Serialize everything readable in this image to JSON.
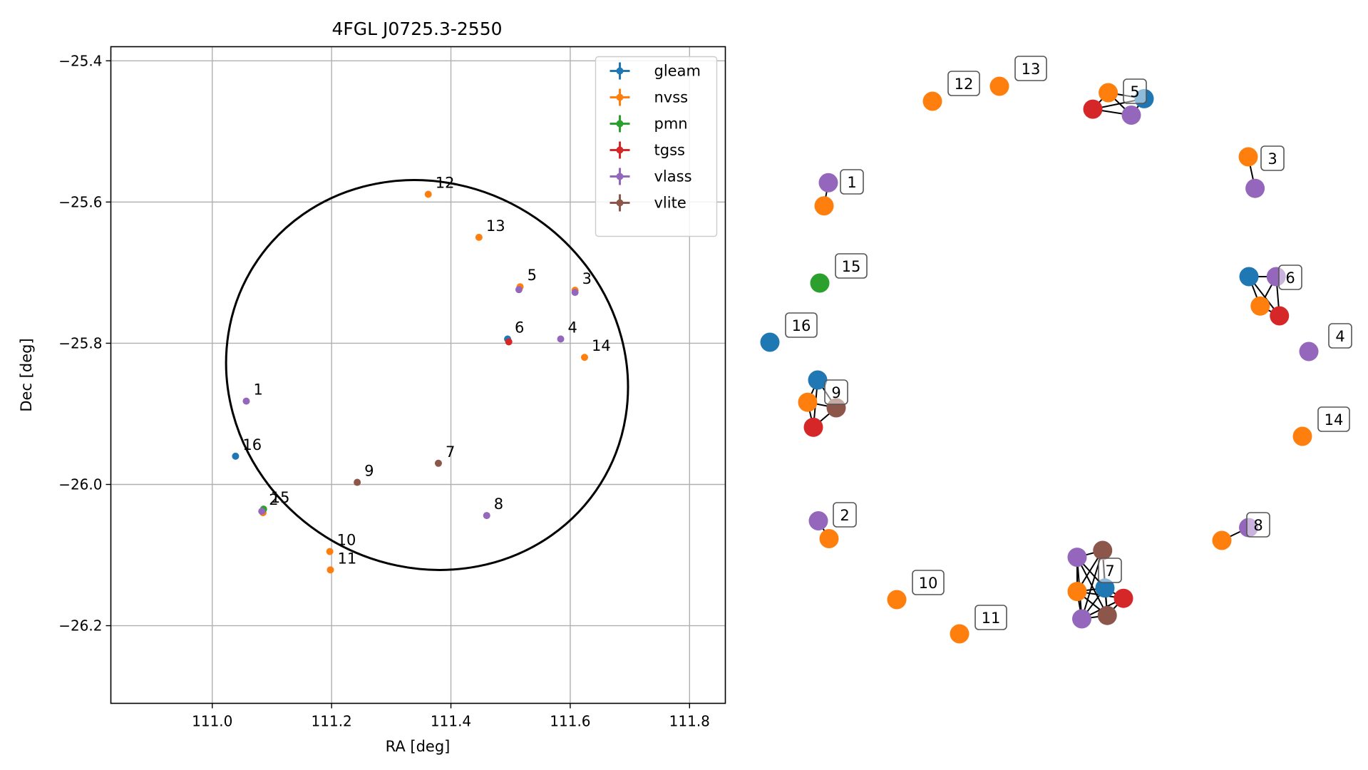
{
  "chart_data": [
    {
      "type": "scatter",
      "title": "4FGL J0725.3-2550",
      "xlabel": "RA [deg]",
      "ylabel": "Dec [deg]",
      "xlim": [
        110.83,
        111.86
      ],
      "ylim": [
        -26.31,
        -25.38
      ],
      "xticks": [
        111.0,
        111.2,
        111.4,
        111.6,
        111.8
      ],
      "xtick_labels": [
        "111.0",
        "111.2",
        "111.4",
        "111.6",
        "111.8"
      ],
      "yticks": [
        -25.4,
        -25.6,
        -25.8,
        -26.0,
        -26.2
      ],
      "ytick_labels": [
        "−25.4",
        "−25.6",
        "−25.8",
        "−26.0",
        "−26.2"
      ],
      "grid": true,
      "legend_position": "upper right",
      "ellipse": {
        "center_ra": 111.36,
        "center_dec": -25.845,
        "half_width_ra": 0.32,
        "half_height_dec": 0.29,
        "tilt_deg": -58
      },
      "colors": {
        "gleam": "#1f77b4",
        "nvss": "#ff7f0e",
        "pmn": "#2ca02c",
        "tgss": "#d62728",
        "vlass": "#9467bd",
        "vlite": "#8c564b"
      },
      "series": [
        {
          "name": "gleam",
          "points": [
            {
              "ra": 111.495,
              "dec": -25.794
            },
            {
              "ra": 111.039,
              "dec": -25.96
            }
          ]
        },
        {
          "name": "nvss",
          "points": [
            {
              "ra": 111.362,
              "dec": -25.589
            },
            {
              "ra": 111.447,
              "dec": -25.65
            },
            {
              "ra": 111.608,
              "dec": -25.725
            },
            {
              "ra": 111.516,
              "dec": -25.72
            },
            {
              "ra": 111.624,
              "dec": -25.82
            },
            {
              "ra": 111.197,
              "dec": -26.095
            },
            {
              "ra": 111.198,
              "dec": -26.121
            },
            {
              "ra": 111.085,
              "dec": -26.04
            }
          ]
        },
        {
          "name": "pmn",
          "points": [
            {
              "ra": 111.086,
              "dec": -26.035
            }
          ]
        },
        {
          "name": "tgss",
          "points": [
            {
              "ra": 111.497,
              "dec": -25.798
            }
          ]
        },
        {
          "name": "vlass",
          "points": [
            {
              "ra": 111.057,
              "dec": -25.882
            },
            {
              "ra": 111.584,
              "dec": -25.794
            },
            {
              "ra": 111.514,
              "dec": -25.724
            },
            {
              "ra": 111.608,
              "dec": -25.728
            },
            {
              "ra": 111.46,
              "dec": -26.044
            },
            {
              "ra": 111.083,
              "dec": -26.038
            }
          ]
        },
        {
          "name": "vlite",
          "points": [
            {
              "ra": 111.379,
              "dec": -25.97
            },
            {
              "ra": 111.243,
              "dec": -25.997
            }
          ]
        }
      ],
      "annotations": [
        {
          "text": "1",
          "ra": 111.057,
          "dec": -25.882
        },
        {
          "text": "2",
          "ra": 111.083,
          "dec": -26.038
        },
        {
          "text": "3",
          "ra": 111.608,
          "dec": -25.725
        },
        {
          "text": "4",
          "ra": 111.584,
          "dec": -25.794
        },
        {
          "text": "5",
          "ra": 111.516,
          "dec": -25.72
        },
        {
          "text": "6",
          "ra": 111.495,
          "dec": -25.794
        },
        {
          "text": "7",
          "ra": 111.379,
          "dec": -25.97
        },
        {
          "text": "8",
          "ra": 111.46,
          "dec": -26.044
        },
        {
          "text": "9",
          "ra": 111.243,
          "dec": -25.997
        },
        {
          "text": "10",
          "ra": 111.197,
          "dec": -26.095
        },
        {
          "text": "11",
          "ra": 111.198,
          "dec": -26.121
        },
        {
          "text": "12",
          "ra": 111.362,
          "dec": -25.589
        },
        {
          "text": "13",
          "ra": 111.447,
          "dec": -25.65
        },
        {
          "text": "14",
          "ra": 111.624,
          "dec": -25.82
        },
        {
          "text": "15",
          "ra": 111.086,
          "dec": -26.035
        },
        {
          "text": "16",
          "ra": 111.039,
          "dec": -25.96
        }
      ]
    },
    {
      "type": "network",
      "groups": [
        {
          "label": "1",
          "nodes": [
            {
              "survey": "vlass",
              "x": 0.3,
              "y": 0.25
            },
            {
              "survey": "nvss",
              "x": 0.18,
              "y": 0.75
            }
          ],
          "edges": [
            [
              0,
              1
            ]
          ]
        },
        {
          "label": "2",
          "nodes": [
            {
              "survey": "vlass",
              "x": 0.0,
              "y": 0.25
            },
            {
              "survey": "nvss",
              "x": 0.5,
              "y": 0.75
            }
          ],
          "edges": [
            [
              0,
              1
            ]
          ]
        },
        {
          "label": "3",
          "nodes": [
            {
              "survey": "nvss",
              "x": 0.25,
              "y": 0.0
            },
            {
              "survey": "vlass",
              "x": 0.55,
              "y": 0.85
            }
          ],
          "edges": [
            [
              0,
              1
            ]
          ]
        },
        {
          "label": "4",
          "nodes": [
            {
              "survey": "vlass",
              "x": 0.5,
              "y": 0.5
            }
          ],
          "edges": []
        },
        {
          "label": "5",
          "nodes": [
            {
              "survey": "nvss",
              "x": 0.3,
              "y": 0.0
            },
            {
              "survey": "gleam",
              "x": 1.0,
              "y": 0.2
            },
            {
              "survey": "tgss",
              "x": 0.0,
              "y": 0.55
            },
            {
              "survey": "vlass",
              "x": 0.75,
              "y": 0.75
            }
          ],
          "edges": [
            [
              0,
              1
            ],
            [
              0,
              2
            ],
            [
              0,
              3
            ],
            [
              1,
              2
            ],
            [
              1,
              3
            ],
            [
              2,
              3
            ]
          ]
        },
        {
          "label": "6",
          "nodes": [
            {
              "survey": "gleam",
              "x": 0.0,
              "y": 0.0
            },
            {
              "survey": "vlass",
              "x": 0.85,
              "y": 0.0
            },
            {
              "survey": "nvss",
              "x": 0.35,
              "y": 0.75
            },
            {
              "survey": "tgss",
              "x": 0.95,
              "y": 1.0
            }
          ],
          "edges": [
            [
              0,
              1
            ],
            [
              0,
              2
            ],
            [
              0,
              3
            ],
            [
              1,
              2
            ],
            [
              1,
              3
            ],
            [
              2,
              3
            ]
          ]
        },
        {
          "label": "7",
          "nodes": [
            {
              "survey": "vlass",
              "x": 0.0,
              "y": 0.1
            },
            {
              "survey": "vlite",
              "x": 0.55,
              "y": 0.0
            },
            {
              "survey": "gleam",
              "x": 0.6,
              "y": 0.55
            },
            {
              "survey": "nvss",
              "x": 0.0,
              "y": 0.6
            },
            {
              "survey": "tgss",
              "x": 1.0,
              "y": 0.7
            },
            {
              "survey": "vlass",
              "x": 0.1,
              "y": 1.0
            },
            {
              "survey": "vlite",
              "x": 0.65,
              "y": 0.95
            }
          ],
          "edges": [
            [
              0,
              1
            ],
            [
              0,
              2
            ],
            [
              0,
              3
            ],
            [
              0,
              5
            ],
            [
              0,
              6
            ],
            [
              1,
              2
            ],
            [
              1,
              3
            ],
            [
              1,
              5
            ],
            [
              1,
              6
            ],
            [
              2,
              3
            ],
            [
              2,
              4
            ],
            [
              2,
              5
            ],
            [
              2,
              6
            ],
            [
              3,
              4
            ],
            [
              3,
              5
            ],
            [
              3,
              6
            ],
            [
              4,
              5
            ],
            [
              4,
              6
            ],
            [
              5,
              6
            ]
          ]
        },
        {
          "label": "8",
          "nodes": [
            {
              "survey": "vlass",
              "x": 0.75,
              "y": 0.0
            },
            {
              "survey": "nvss",
              "x": 0.0,
              "y": 0.5
            }
          ],
          "edges": [
            [
              0,
              1
            ]
          ]
        },
        {
          "label": "9",
          "nodes": [
            {
              "survey": "gleam",
              "x": 0.35,
              "y": 0.0
            },
            {
              "survey": "nvss",
              "x": 0.0,
              "y": 0.4
            },
            {
              "survey": "vlite",
              "x": 1.0,
              "y": 0.5
            },
            {
              "survey": "tgss",
              "x": 0.2,
              "y": 0.85
            }
          ],
          "edges": [
            [
              0,
              1
            ],
            [
              0,
              2
            ],
            [
              0,
              3
            ],
            [
              1,
              2
            ],
            [
              1,
              3
            ],
            [
              2,
              3
            ]
          ]
        },
        {
          "label": "10",
          "nodes": [
            {
              "survey": "nvss",
              "x": 0.5,
              "y": 0.5
            }
          ],
          "edges": []
        },
        {
          "label": "11",
          "nodes": [
            {
              "survey": "nvss",
              "x": 0.5,
              "y": 0.5
            }
          ],
          "edges": []
        },
        {
          "label": "12",
          "nodes": [
            {
              "survey": "nvss",
              "x": 0.5,
              "y": 0.5
            }
          ],
          "edges": []
        },
        {
          "label": "13",
          "nodes": [
            {
              "survey": "nvss",
              "x": 0.5,
              "y": 0.5
            }
          ],
          "edges": []
        },
        {
          "label": "14",
          "nodes": [
            {
              "survey": "nvss",
              "x": 0.5,
              "y": 0.5
            }
          ],
          "edges": []
        },
        {
          "label": "15",
          "nodes": [
            {
              "survey": "pmn",
              "x": 0.5,
              "y": 0.5
            }
          ],
          "edges": []
        },
        {
          "label": "16",
          "nodes": [
            {
              "survey": "gleam",
              "x": 0.5,
              "y": 0.5
            }
          ],
          "edges": []
        }
      ]
    }
  ]
}
